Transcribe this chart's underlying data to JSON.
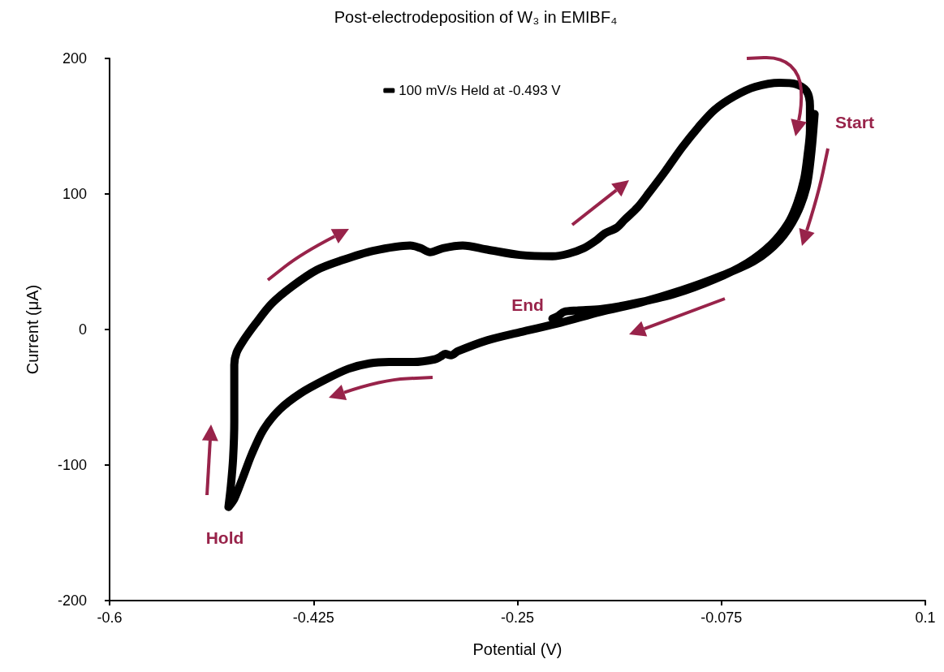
{
  "chart_data": {
    "type": "line",
    "title": "Post-electrodeposition of W₃ in EMIBF₄",
    "xlabel": "Potential (V)",
    "ylabel": "Current (μA)",
    "xlim": [
      -0.6,
      0.1
    ],
    "xticks": [
      -0.6,
      -0.425,
      -0.25,
      -0.075,
      0.1
    ],
    "ylim": [
      -200,
      200
    ],
    "yticks": [
      -200,
      -100,
      0,
      100,
      200
    ],
    "grid": false,
    "legend": "top",
    "line_style": "solid",
    "annotations": [
      "Start",
      "End",
      "Hold"
    ],
    "series": [
      {
        "name": "100 mV/s Held at -0.493 V",
        "color": "#000000",
        "x": [
          0.005,
          0.002,
          -0.002,
          -0.011,
          -0.025,
          -0.046,
          -0.074,
          -0.109,
          -0.144,
          -0.179,
          -0.213,
          -0.248,
          -0.276,
          -0.301,
          -0.307,
          -0.312,
          -0.316,
          -0.321,
          -0.339,
          -0.36,
          -0.377,
          -0.395,
          -0.415,
          -0.436,
          -0.454,
          -0.468,
          -0.478,
          -0.486,
          -0.493,
          -0.498,
          -0.496,
          -0.494,
          -0.493,
          -0.493,
          -0.491,
          -0.485,
          -0.475,
          -0.461,
          -0.443,
          -0.422,
          -0.401,
          -0.374,
          -0.342,
          -0.333,
          -0.325,
          -0.314,
          -0.297,
          -0.276,
          -0.248,
          -0.22,
          -0.206,
          -0.193,
          -0.182,
          -0.175,
          -0.165,
          -0.158,
          -0.147,
          -0.137,
          -0.123,
          -0.109,
          -0.095,
          -0.081,
          -0.064,
          -0.046,
          -0.025,
          -0.011,
          -0.002,
          0.001,
          0.001,
          -0.001,
          -0.004,
          -0.01,
          -0.018,
          -0.032,
          -0.053,
          -0.081,
          -0.116,
          -0.151,
          -0.179,
          -0.199,
          -0.21,
          -0.215,
          -0.22
        ],
        "values": [
          159,
          129,
          105,
          84,
          66,
          51,
          40,
          29,
          20,
          13,
          5,
          -2,
          -8,
          -16,
          -19,
          -18,
          -20,
          -22,
          -24,
          -24,
          -25,
          -29,
          -37,
          -47,
          -59,
          -74,
          -92,
          -110,
          -125,
          -131,
          -116,
          -95,
          -68,
          -26,
          -17,
          -8,
          4,
          19,
          32,
          44,
          51,
          58,
          62,
          60,
          57,
          60,
          62,
          59,
          55,
          54,
          56,
          60,
          66,
          71,
          75,
          81,
          90,
          101,
          117,
          134,
          149,
          162,
          172,
          179,
          182,
          181,
          176,
          165,
          147,
          129,
          111,
          93,
          78,
          63,
          49,
          37,
          26,
          19,
          15,
          14,
          13,
          10,
          8
        ]
      }
    ]
  }
}
